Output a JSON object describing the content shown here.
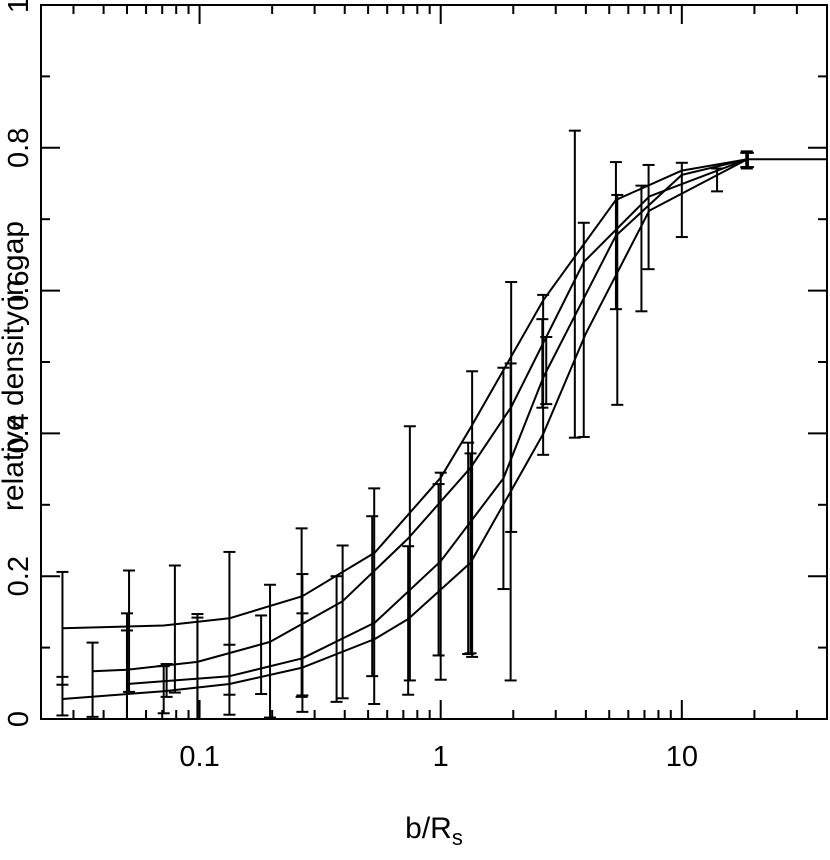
{
  "chart_data": {
    "type": "line",
    "title": "",
    "xlabel": "b/R",
    "xlabel_subscript": "s",
    "ylabel": "relative density in gap",
    "xscale": "log",
    "xlim": [
      0.022,
      40
    ],
    "ylim": [
      0,
      1
    ],
    "grid": false,
    "legend": "none",
    "x_ticks": [
      {
        "value": 0.1,
        "label": "0.1"
      },
      {
        "value": 1,
        "label": "1"
      },
      {
        "value": 10,
        "label": "10"
      }
    ],
    "y_ticks": [
      {
        "value": 0,
        "label": "0"
      },
      {
        "value": 0.2,
        "label": "0.2"
      },
      {
        "value": 0.4,
        "label": "0.4"
      },
      {
        "value": 0.6,
        "label": "0.6"
      },
      {
        "value": 0.8,
        "label": "0.8"
      },
      {
        "value": 1,
        "label": "1"
      }
    ],
    "series": [
      {
        "x": [
          0.027,
          0.071,
          0.133,
          0.267,
          0.533,
          1.0,
          1.33,
          2.67,
          5.33,
          10.0,
          18.7,
          40
        ],
        "y": [
          0.127,
          0.131,
          0.141,
          0.172,
          0.233,
          0.338,
          0.408,
          0.587,
          0.727,
          0.768,
          0.784,
          0.784
        ],
        "err_x": [
          0.027,
          0.051,
          0.079,
          0.133,
          0.265,
          0.53,
          0.98,
          1.95,
          2.66,
          5.4,
          10.0,
          14.0,
          18.5
        ],
        "err_y": [
          0.127,
          0.123,
          0.126,
          0.134,
          0.149,
          0.172,
          0.209,
          0.276,
          0.482,
          0.587,
          0.727,
          0.755,
          0.783
        ],
        "err_e": [
          0.079,
          0.085,
          0.089,
          0.1,
          0.118,
          0.151,
          0.12,
          0.222,
          0.112,
          0.147,
          0.052,
          0.016,
          0.01
        ]
      },
      {
        "x": [
          0.036,
          0.05,
          0.098,
          0.196,
          0.392,
          0.733,
          1.33,
          1.96,
          3.92,
          7.33,
          18.7
        ],
        "y": [
          0.067,
          0.069,
          0.08,
          0.108,
          0.165,
          0.253,
          0.352,
          0.437,
          0.64,
          0.732,
          0.784
        ],
        "err_x": [
          0.036,
          0.05,
          0.098,
          0.196,
          0.392,
          0.745,
          1.35,
          1.96,
          3.6,
          7.28,
          18.6
        ],
        "err_y": [
          0.055,
          0.068,
          0.071,
          0.095,
          0.136,
          0.232,
          0.287,
          0.437,
          0.609,
          0.703,
          0.783
        ],
        "err_e": [
          0.052,
          0.08,
          0.071,
          0.093,
          0.107,
          0.178,
          0.2,
          0.175,
          0.215,
          0.073,
          0.012
        ]
      },
      {
        "x": [
          0.05,
          0.133,
          0.267,
          0.533,
          1.0,
          1.82,
          2.67,
          5.33,
          10.0,
          18.7
        ],
        "y": [
          0.049,
          0.06,
          0.085,
          0.135,
          0.221,
          0.337,
          0.479,
          0.677,
          0.762,
          0.784
        ],
        "err_x": [
          0.027,
          0.05,
          0.073,
          0.098,
          0.18,
          0.267,
          0.52,
          1.0,
          1.33,
          1.82,
          2.74,
          5.33,
          18.8
        ],
        "err_y": [
          0.032,
          0.049,
          0.054,
          0.062,
          0.09,
          0.118,
          0.172,
          0.2,
          0.232,
          0.337,
          0.488,
          0.677,
          0.783
        ],
        "err_e": [
          0.027,
          0.075,
          0.023,
          0.085,
          0.055,
          0.085,
          0.112,
          0.145,
          0.14,
          0.155,
          0.047,
          0.103,
          0.01
        ]
      },
      {
        "x": [
          0.027,
          0.071,
          0.133,
          0.267,
          0.533,
          0.733,
          1.33,
          2.67,
          4.0,
          7.33,
          18.7
        ],
        "y": [
          0.028,
          0.039,
          0.049,
          0.072,
          0.112,
          0.14,
          0.219,
          0.4,
          0.54,
          0.712,
          0.784
        ],
        "err_x": [
          0.071,
          0.133,
          0.267,
          0.37,
          0.733,
          1.3,
          2.64,
          3.92,
          6.8
        ],
        "err_y": [
          0.041,
          0.055,
          0.079,
          0.112,
          0.138,
          0.239,
          0.498,
          0.545,
          0.659
        ],
        "err_e": [
          0.033,
          0.049,
          0.069,
          0.088,
          0.104,
          0.148,
          0.062,
          0.15,
          0.088
        ]
      }
    ]
  }
}
